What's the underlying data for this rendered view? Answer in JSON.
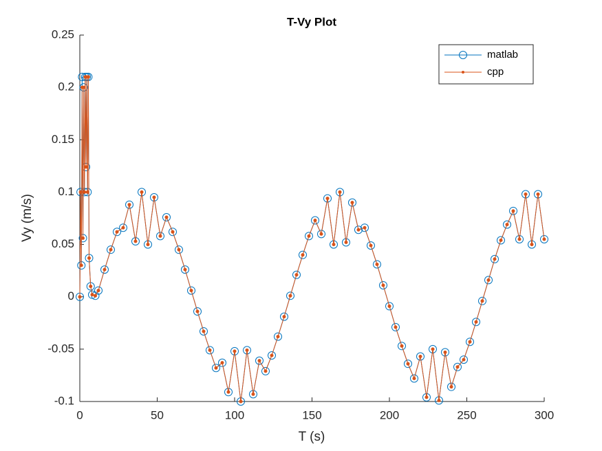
{
  "chart_data": {
    "type": "line",
    "title": "T-Vy Plot",
    "x_label": "T (s)",
    "y_label": "Vy (m/s)",
    "x": [
      0,
      0.5,
      1,
      1.5,
      2,
      2.5,
      3,
      3.5,
      4,
      4.5,
      5,
      5.5,
      6,
      7,
      8,
      10,
      12,
      16,
      20,
      24,
      28,
      32,
      36,
      40,
      44,
      48,
      52,
      56,
      60,
      64,
      68,
      72,
      76,
      80,
      84,
      88,
      92,
      96,
      100,
      104,
      108,
      112,
      116,
      120,
      124,
      128,
      132,
      136,
      140,
      144,
      148,
      152,
      156,
      160,
      164,
      168,
      172,
      176,
      180,
      184,
      188,
      192,
      196,
      200,
      204,
      208,
      212,
      216,
      220,
      224,
      228,
      232,
      236,
      240,
      244,
      248,
      252,
      256,
      260,
      264,
      268,
      272,
      276,
      280,
      284,
      288,
      292,
      296,
      300
    ],
    "series": [
      {
        "name": "matlab",
        "color": "#0072bd",
        "marker": "circle",
        "values": [
          0,
          0.1,
          0.03,
          0.21,
          0.056,
          0.2,
          0.1,
          0.21,
          0.124,
          0.21,
          0.1,
          0.21,
          0.037,
          0.01,
          0.002,
          0.001,
          0.006,
          0.026,
          0.045,
          0.062,
          0.066,
          0.088,
          0.053,
          0.1,
          0.05,
          0.095,
          0.058,
          0.076,
          0.062,
          0.045,
          0.026,
          0.006,
          -0.014,
          -0.033,
          -0.051,
          -0.068,
          -0.063,
          -0.091,
          -0.052,
          -0.1,
          -0.051,
          -0.093,
          -0.061,
          -0.071,
          -0.056,
          -0.038,
          -0.019,
          0.001,
          0.021,
          0.04,
          0.058,
          0.073,
          0.06,
          0.094,
          0.05,
          0.1,
          0.052,
          0.09,
          0.064,
          0.066,
          0.049,
          0.031,
          0.011,
          -0.009,
          -0.029,
          -0.047,
          -0.064,
          -0.078,
          -0.057,
          -0.096,
          -0.05,
          -0.099,
          -0.053,
          -0.086,
          -0.067,
          -0.06,
          -0.043,
          -0.024,
          -0.004,
          0.016,
          0.036,
          0.054,
          0.069,
          0.082,
          0.055,
          0.098,
          0.05,
          0.098,
          0.055
        ]
      },
      {
        "name": "cpp",
        "color": "#d95319",
        "marker": "dot",
        "values": [
          0,
          0.1,
          0.03,
          0.2,
          0.056,
          0.2,
          0.1,
          0.21,
          0.124,
          0.21,
          0.1,
          0.21,
          0.037,
          0.01,
          0.002,
          0.001,
          0.006,
          0.026,
          0.045,
          0.062,
          0.066,
          0.088,
          0.053,
          0.1,
          0.05,
          0.095,
          0.058,
          0.076,
          0.062,
          0.045,
          0.026,
          0.006,
          -0.014,
          -0.033,
          -0.051,
          -0.068,
          -0.063,
          -0.091,
          -0.052,
          -0.1,
          -0.051,
          -0.093,
          -0.061,
          -0.071,
          -0.056,
          -0.038,
          -0.019,
          0.001,
          0.021,
          0.04,
          0.058,
          0.073,
          0.06,
          0.094,
          0.05,
          0.1,
          0.052,
          0.09,
          0.064,
          0.066,
          0.049,
          0.031,
          0.011,
          -0.009,
          -0.029,
          -0.047,
          -0.064,
          -0.078,
          -0.057,
          -0.096,
          -0.05,
          -0.099,
          -0.053,
          -0.086,
          -0.067,
          -0.06,
          -0.043,
          -0.024,
          -0.004,
          0.016,
          0.036,
          0.054,
          0.069,
          0.082,
          0.055,
          0.098,
          0.05,
          0.098,
          0.055
        ]
      }
    ],
    "xlim": [
      0,
      300
    ],
    "xticks": [
      0,
      50,
      100,
      150,
      200,
      250,
      300
    ],
    "ylim": [
      -0.1,
      0.25
    ],
    "yticks": [
      -0.1,
      -0.05,
      0,
      0.05,
      0.1,
      0.15,
      0.2,
      0.25
    ],
    "grid": false,
    "legend_position": "northeast"
  }
}
